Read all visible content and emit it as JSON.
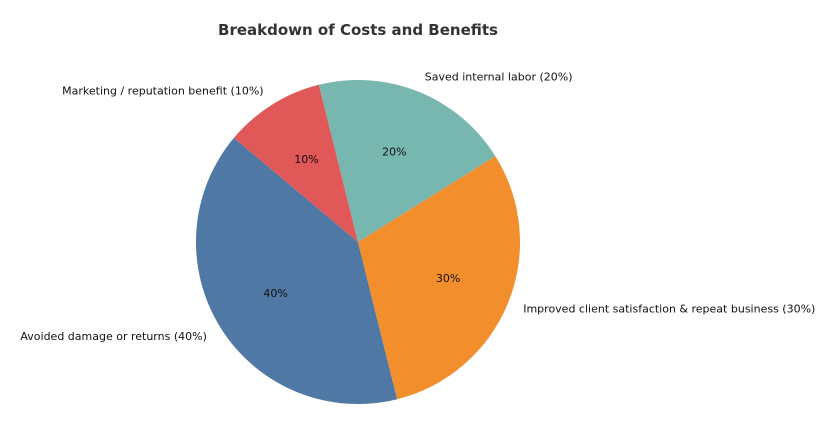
{
  "chart_data": {
    "type": "pie",
    "title": "Breakdown of Costs and Benefits",
    "start_angle_deg": 140,
    "direction": "counterclockwise",
    "slices": [
      {
        "label": "Avoided damage or returns (40%)",
        "pct_label": "40%",
        "value": 40,
        "color": "#4f78a5"
      },
      {
        "label": "Improved client satisfaction & repeat business (30%)",
        "pct_label": "30%",
        "value": 30,
        "color": "#f28f2c"
      },
      {
        "label": "Saved internal labor (20%)",
        "pct_label": "20%",
        "value": 20,
        "color": "#78b6b0"
      },
      {
        "label": "Marketing / reputation benefit (10%)",
        "pct_label": "10%",
        "value": 10,
        "color": "#e05858"
      }
    ]
  }
}
